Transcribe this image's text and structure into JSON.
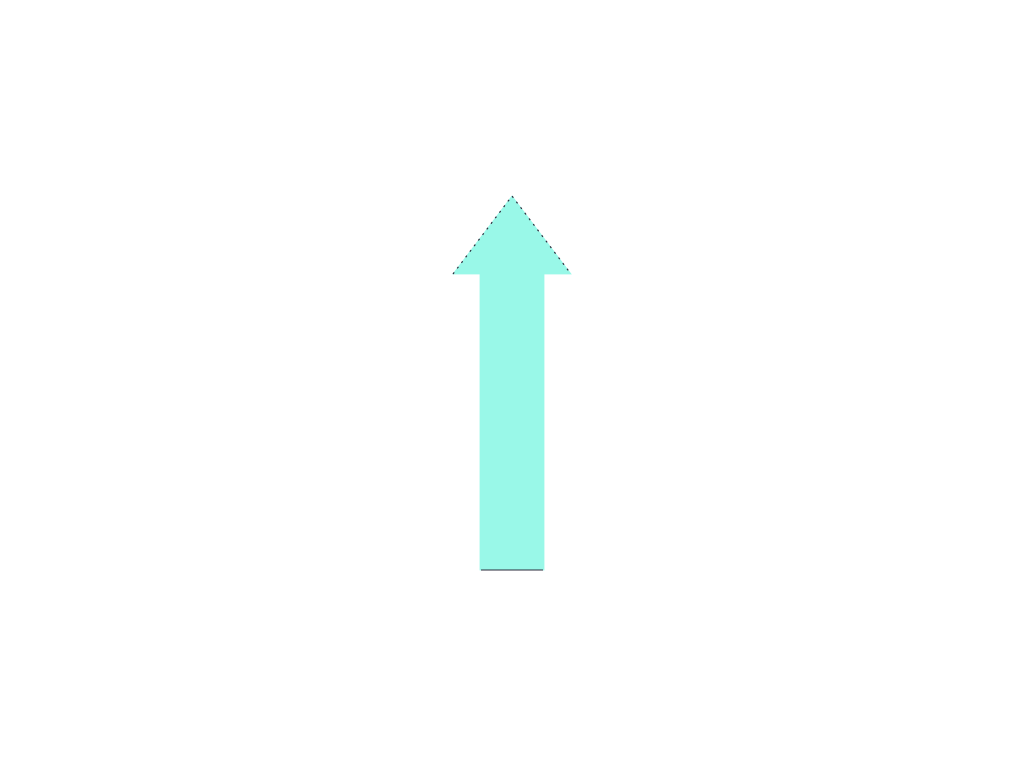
{
  "canvas": {
    "background_color": "#ffffff"
  },
  "arrow": {
    "icon": "up-arrow-icon",
    "direction": "up",
    "fill_color": "#99f8e8",
    "outline_color": "#2a2a3a"
  }
}
